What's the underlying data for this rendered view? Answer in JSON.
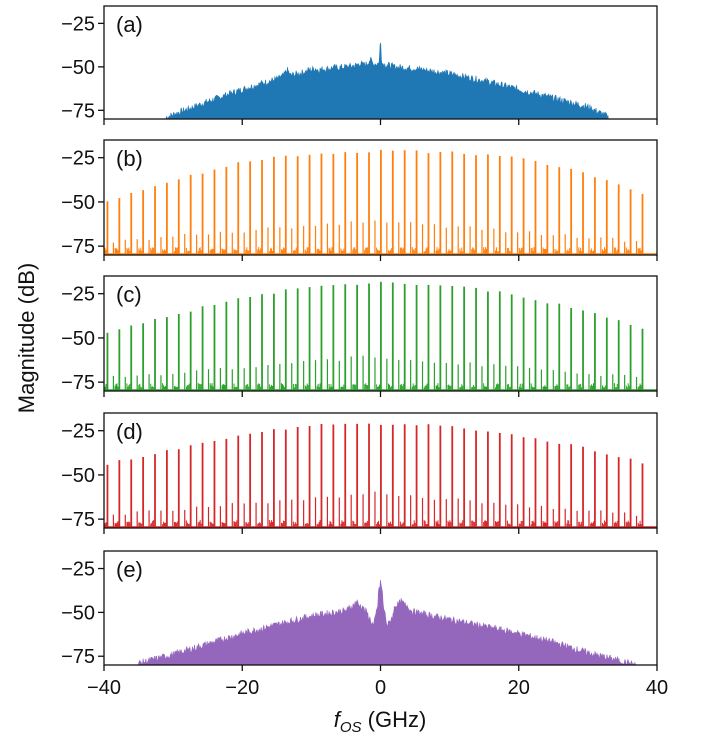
{
  "figure": {
    "ylabel": "Magnitude (dB)",
    "xlabel_main": "f",
    "xlabel_sub": "OS",
    "xlabel_unit": " (GHz)"
  },
  "chart_data": [
    {
      "type": "area",
      "panel_label": "(a)",
      "color": "#1f77b4",
      "style": "noise",
      "x_range": [
        -40,
        40
      ],
      "ylim": [
        -80,
        -15
      ],
      "yticks": [
        -25,
        -50,
        -75
      ],
      "xticks": [
        -40,
        -20,
        0,
        20,
        40
      ],
      "envelope": {
        "x": [
          -31,
          -25,
          -20,
          -15,
          -10,
          -5,
          -2,
          0,
          2,
          5,
          10,
          15,
          20,
          25,
          30,
          33
        ],
        "y": [
          -79,
          -70,
          -63,
          -57,
          -52,
          -50,
          -49,
          -48,
          -50,
          -51,
          -54,
          -58,
          -63,
          -68,
          -73,
          -79
        ]
      },
      "peaks": [
        {
          "x": 0,
          "y": -35
        },
        {
          "x": -13.5,
          "y": -52
        },
        {
          "x": -9.5,
          "y": -51
        },
        {
          "x": -6,
          "y": -51
        },
        {
          "x": -3,
          "y": -48
        },
        {
          "x": -1.5,
          "y": -46
        }
      ]
    },
    {
      "type": "line",
      "panel_label": "(b)",
      "color": "#ff7f0e",
      "style": "comb",
      "x_range": [
        -40,
        40
      ],
      "ylim": [
        -80,
        -15
      ],
      "yticks": [
        -25,
        -50,
        -75
      ],
      "xticks": [
        -40,
        -20,
        0,
        20,
        40
      ],
      "comb_spacing": 1.72,
      "comb_x": [
        -39.5,
        39
      ],
      "envelope": {
        "x": [
          -40,
          -30,
          -20,
          -10,
          0,
          10,
          20,
          30,
          40
        ],
        "y": [
          -50,
          -38,
          -27,
          -23,
          -21,
          -22,
          -25,
          -34,
          -49
        ]
      }
    },
    {
      "type": "line",
      "panel_label": "(c)",
      "color": "#2ca02c",
      "style": "comb",
      "x_range": [
        -40,
        40
      ],
      "ylim": [
        -80,
        -15
      ],
      "yticks": [
        -25,
        -50,
        -75
      ],
      "xticks": [
        -40,
        -20,
        0,
        20,
        40
      ],
      "comb_spacing": 1.72,
      "comb_x": [
        -39.5,
        39
      ],
      "envelope": {
        "x": [
          -40,
          -30,
          -20,
          -10,
          0,
          10,
          20,
          30,
          40
        ],
        "y": [
          -47,
          -37,
          -27,
          -21,
          -19,
          -20,
          -26,
          -35,
          -47
        ]
      }
    },
    {
      "type": "line",
      "panel_label": "(d)",
      "color": "#d62728",
      "style": "comb",
      "x_range": [
        -40,
        40
      ],
      "ylim": [
        -80,
        -15
      ],
      "yticks": [
        -25,
        -50,
        -75
      ],
      "xticks": [
        -40,
        -20,
        0,
        20,
        40
      ],
      "comb_spacing": 1.72,
      "comb_x": [
        -39.5,
        39
      ],
      "envelope": {
        "x": [
          -40,
          -30,
          -20,
          -10,
          0,
          10,
          20,
          30,
          40
        ],
        "y": [
          -44,
          -36,
          -27,
          -22,
          -21,
          -22,
          -28,
          -35,
          -45
        ]
      }
    },
    {
      "type": "area",
      "panel_label": "(e)",
      "color": "#9467bd",
      "style": "noise",
      "x_range": [
        -40,
        40
      ],
      "ylim": [
        -80,
        -15
      ],
      "yticks": [
        -25,
        -50,
        -75
      ],
      "xticks": [
        -40,
        -20,
        0,
        20,
        40
      ],
      "envelope": {
        "x": [
          -35,
          -30,
          -25,
          -20,
          -15,
          -10,
          -5,
          -3,
          -2,
          -1,
          0,
          1,
          2,
          3,
          5,
          10,
          15,
          20,
          25,
          30,
          35,
          37
        ],
        "y": [
          -79,
          -74,
          -68,
          -62,
          -57,
          -52,
          -49,
          -46,
          -50,
          -58,
          -38,
          -58,
          -50,
          -46,
          -50,
          -54,
          -58,
          -62,
          -67,
          -73,
          -78,
          -80
        ]
      },
      "peaks": [
        {
          "x": 0,
          "y": -32
        },
        {
          "x": -3.5,
          "y": -44
        },
        {
          "x": 3,
          "y": -44
        }
      ]
    }
  ]
}
